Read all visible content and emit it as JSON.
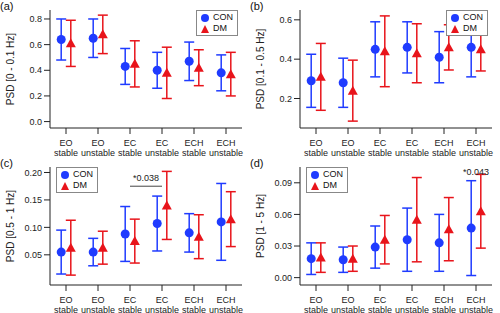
{
  "chart_data": [
    {
      "type": "scatter",
      "title": "(a)",
      "y_label": "PSD [0 - 0.1 Hz]",
      "categories": [
        "EO stable",
        "EO unstable",
        "EC stable",
        "EC unstable",
        "ECH stable",
        "ECH unstable"
      ],
      "series": [
        {
          "name": "CON",
          "color": "#1f3bff",
          "marker": "circle",
          "values": [
            0.64,
            0.65,
            0.43,
            0.4,
            0.47,
            0.38
          ],
          "errors": [
            0.16,
            0.15,
            0.14,
            0.14,
            0.15,
            0.14
          ]
        },
        {
          "name": "DM",
          "color": "#e8141b",
          "marker": "triangle",
          "values": [
            0.61,
            0.68,
            0.45,
            0.38,
            0.42,
            0.37
          ],
          "errors": [
            0.18,
            0.15,
            0.18,
            0.2,
            0.14,
            0.17
          ]
        }
      ],
      "ylim": [
        -0.05,
        0.87
      ],
      "yticks": [
        {
          "value": 0,
          "label": "0.0"
        },
        0.2,
        0.4,
        0.6,
        0.8
      ],
      "legend": "upper right"
    },
    {
      "type": "scatter",
      "title": "(b)",
      "y_label": "PSD [0.1 - 0.5 Hz]",
      "categories": [
        "EO stable",
        "EO unstable",
        "EC stable",
        "EC unstable",
        "ECH stable",
        "ECH unstable"
      ],
      "series": [
        {
          "name": "CON",
          "color": "#1f3bff",
          "marker": "circle",
          "values": [
            0.29,
            0.28,
            0.45,
            0.46,
            0.41,
            0.46
          ],
          "errors": [
            0.135,
            0.125,
            0.14,
            0.13,
            0.13,
            0.15
          ]
        },
        {
          "name": "DM",
          "color": "#e8141b",
          "marker": "triangle",
          "values": [
            0.31,
            0.24,
            0.44,
            0.43,
            0.46,
            0.45
          ],
          "errors": [
            0.17,
            0.155,
            0.18,
            0.15,
            0.115,
            0.11
          ]
        }
      ],
      "ylim": [
        0.05,
        0.65
      ],
      "yticks": [
        0.2,
        0.4,
        0.6
      ],
      "legend": "upper right"
    },
    {
      "type": "scatter",
      "title": "(c)",
      "y_label": "PSD [0.5 - 1 Hz]",
      "categories": [
        "EO stable",
        "EO unstable",
        "EC stable",
        "EC unstable",
        "ECH stable",
        "ECH unstable"
      ],
      "series": [
        {
          "name": "CON",
          "color": "#1f3bff",
          "marker": "circle",
          "values": [
            0.055,
            0.055,
            0.088,
            0.107,
            0.09,
            0.11
          ],
          "errors": [
            0.04,
            0.025,
            0.05,
            0.05,
            0.035,
            0.07
          ]
        },
        {
          "name": "DM",
          "color": "#e8141b",
          "marker": "triangle",
          "values": [
            0.063,
            0.063,
            0.075,
            0.14,
            0.083,
            0.115
          ],
          "errors": [
            0.05,
            0.03,
            0.04,
            0.062,
            0.04,
            0.05
          ]
        }
      ],
      "ylim": [
        -0.005,
        0.21
      ],
      "yticks": [
        0.05,
        {
          "value": 0.1,
          "label": "0.10"
        },
        0.15,
        {
          "value": 0.2,
          "label": "0.20"
        }
      ],
      "legend": "upper left",
      "annotations": [
        {
          "text": "*0.038",
          "x": [
            2,
            3
          ],
          "y": 0.175
        }
      ]
    },
    {
      "type": "scatter",
      "title": "(d)",
      "y_label": "PSD [1 - 5 Hz]",
      "categories": [
        "EO stable",
        "EO unstable",
        "EC stable",
        "EC unstable",
        "ECH stable",
        "ECH unstable"
      ],
      "series": [
        {
          "name": "CON",
          "color": "#1f3bff",
          "marker": "circle",
          "values": [
            0.018,
            0.017,
            0.029,
            0.036,
            0.033,
            0.047
          ],
          "errors": [
            0.015,
            0.012,
            0.02,
            0.03,
            0.027,
            0.045
          ]
        },
        {
          "name": "DM",
          "color": "#e8141b",
          "marker": "triangle",
          "values": [
            0.019,
            0.018,
            0.036,
            0.055,
            0.046,
            0.063
          ],
          "errors": [
            0.014,
            0.012,
            0.023,
            0.04,
            0.03,
            0.035
          ]
        }
      ],
      "ylim": [
        -0.007,
        0.105
      ],
      "yticks": [
        {
          "value": 0,
          "label": "0.00"
        },
        0.03,
        0.06,
        0.09
      ],
      "legend": "upper left",
      "annotations": [
        {
          "text": "*0.043",
          "x": [
            5
          ],
          "y": 0.1
        }
      ]
    }
  ]
}
